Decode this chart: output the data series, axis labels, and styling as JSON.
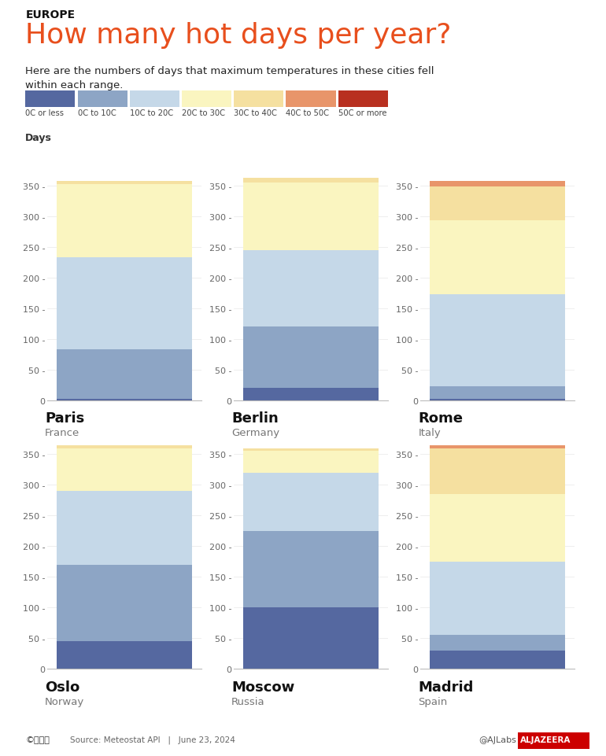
{
  "title_region": "EUROPE",
  "title_main": "How many hot days per year?",
  "subtitle": "Here are the numbers of days that maximum temperatures in these cities fell\nwithin each range.",
  "days_label": "Days",
  "legend_labels": [
    "0C or less",
    "0C to 10C",
    "10C to 20C",
    "20C to 30C",
    "30C to 40C",
    "40C to 50C",
    "50C or more"
  ],
  "legend_colors": [
    "#5568a0",
    "#8da5c5",
    "#c5d8e8",
    "#faf5c0",
    "#f5e0a0",
    "#e8956a",
    "#b83020"
  ],
  "cities": [
    {
      "name": "Paris",
      "country": "France",
      "values": [
        3,
        80,
        150,
        120,
        5,
        0,
        0
      ]
    },
    {
      "name": "Berlin",
      "country": "Germany",
      "values": [
        20,
        100,
        125,
        110,
        8,
        0,
        0
      ]
    },
    {
      "name": "Rome",
      "country": "Italy",
      "values": [
        3,
        20,
        150,
        120,
        55,
        10,
        0
      ]
    },
    {
      "name": "Oslo",
      "country": "Norway",
      "values": [
        45,
        125,
        120,
        70,
        5,
        0,
        0
      ]
    },
    {
      "name": "Moscow",
      "country": "Russia",
      "values": [
        100,
        125,
        95,
        35,
        5,
        0,
        0
      ]
    },
    {
      "name": "Madrid",
      "country": "Spain",
      "values": [
        30,
        25,
        120,
        110,
        75,
        5,
        0
      ]
    }
  ],
  "ylim": [
    0,
    370
  ],
  "yticks": [
    0,
    50,
    100,
    150,
    200,
    250,
    300,
    350
  ],
  "bar_colors": [
    "#5568a0",
    "#8da5c5",
    "#c5d8e8",
    "#faf5c0",
    "#f5e0a0",
    "#e8956a",
    "#b83020"
  ],
  "source_text": "Source: Meteostat API   |   June 23, 2024",
  "credit_text": "@AJLabs",
  "title_color": "#e84f1d",
  "region_color": "#111111",
  "bg_color": "#ffffff"
}
